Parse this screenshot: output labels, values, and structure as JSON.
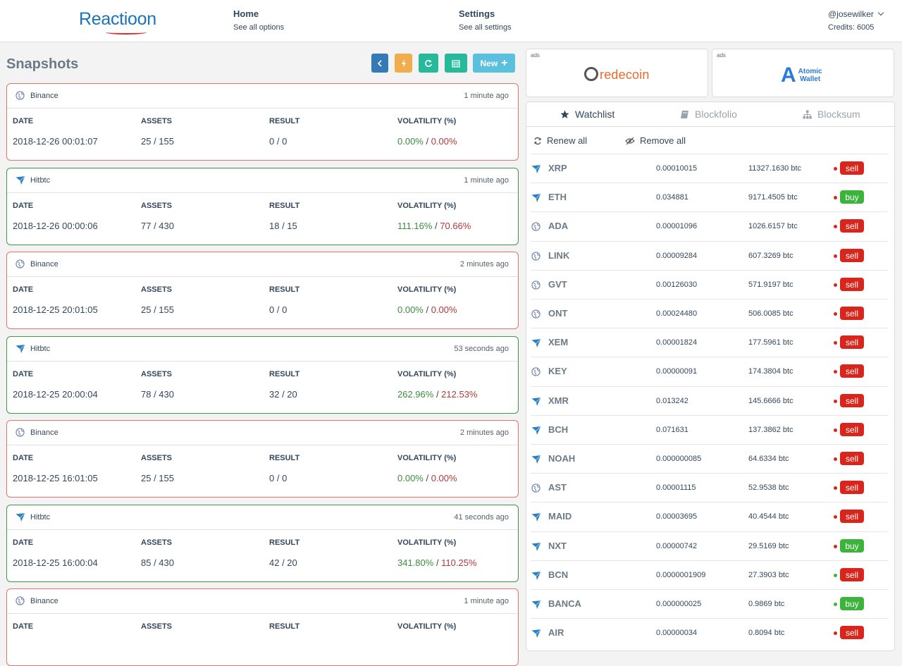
{
  "header": {
    "logo": "Reactioon",
    "nav": [
      {
        "title": "Home",
        "subtitle": "See all options"
      },
      {
        "title": "Settings",
        "subtitle": "See all settings"
      }
    ],
    "user": "@josewilker",
    "credits": "Credits: 6005"
  },
  "snapshots": {
    "title": "Snapshots",
    "new_label": "New",
    "columns": [
      "DATE",
      "ASSETS",
      "RESULT",
      "VOLATILITY (%)"
    ],
    "separator": " / ",
    "items": [
      {
        "exchange": "Binance",
        "ago": "1 minute ago",
        "date": "2018-12-26 00:01:07",
        "assets": "25 / 155",
        "result": "0 / 0",
        "vol_pos": "0.00%",
        "vol_neg": "0.00%",
        "status": "red"
      },
      {
        "exchange": "Hitbtc",
        "ago": "1 minute ago",
        "date": "2018-12-26 00:00:06",
        "assets": "77 / 430",
        "result": "18 / 15",
        "vol_pos": "111.16%",
        "vol_neg": "70.66%",
        "status": "green"
      },
      {
        "exchange": "Binance",
        "ago": "2 minutes ago",
        "date": "2018-12-25 20:01:05",
        "assets": "25 / 155",
        "result": "0 / 0",
        "vol_pos": "0.00%",
        "vol_neg": "0.00%",
        "status": "red"
      },
      {
        "exchange": "Hitbtc",
        "ago": "53 seconds ago",
        "date": "2018-12-25 20:00:04",
        "assets": "78 / 430",
        "result": "32 / 20",
        "vol_pos": "262.96%",
        "vol_neg": "212.53%",
        "status": "green"
      },
      {
        "exchange": "Binance",
        "ago": "2 minutes ago",
        "date": "2018-12-25 16:01:05",
        "assets": "25 / 155",
        "result": "0 / 0",
        "vol_pos": "0.00%",
        "vol_neg": "0.00%",
        "status": "red"
      },
      {
        "exchange": "Hitbtc",
        "ago": "41 seconds ago",
        "date": "2018-12-25 16:00:04",
        "assets": "85 / 430",
        "result": "42 / 20",
        "vol_pos": "341.80%",
        "vol_neg": "110.25%",
        "status": "green"
      },
      {
        "exchange": "Binance",
        "ago": "1 minute ago",
        "date": "",
        "assets": "",
        "result": "",
        "vol_pos": "",
        "vol_neg": "",
        "status": "red"
      }
    ]
  },
  "ads": [
    {
      "label": "ads",
      "brand": "redecoin"
    },
    {
      "label": "ads",
      "brand_line1": "Atomic",
      "brand_line2": "Wallet"
    }
  ],
  "watchlist": {
    "tabs": [
      "Watchlist",
      "Blockfolio",
      "Blocksum"
    ],
    "renew_label": "Renew all",
    "remove_label": "Remove all",
    "items": [
      {
        "exchange": "hitbtc",
        "symbol": "XRP",
        "price": "0.00010015",
        "volume": "11327.1630 btc",
        "dot": "red",
        "signal": "sell"
      },
      {
        "exchange": "hitbtc",
        "symbol": "ETH",
        "price": "0.034881",
        "volume": "9171.4505 btc",
        "dot": "red",
        "signal": "buy"
      },
      {
        "exchange": "binance",
        "symbol": "ADA",
        "price": "0.00001096",
        "volume": "1026.6157 btc",
        "dot": "red",
        "signal": "sell"
      },
      {
        "exchange": "binance",
        "symbol": "LINK",
        "price": "0.00009284",
        "volume": "607.3269 btc",
        "dot": "red",
        "signal": "sell"
      },
      {
        "exchange": "binance",
        "symbol": "GVT",
        "price": "0.00126030",
        "volume": "571.9197 btc",
        "dot": "red",
        "signal": "sell"
      },
      {
        "exchange": "binance",
        "symbol": "ONT",
        "price": "0.00024480",
        "volume": "506.0085 btc",
        "dot": "red",
        "signal": "sell"
      },
      {
        "exchange": "hitbtc",
        "symbol": "XEM",
        "price": "0.00001824",
        "volume": "177.5961 btc",
        "dot": "red",
        "signal": "sell"
      },
      {
        "exchange": "binance",
        "symbol": "KEY",
        "price": "0.00000091",
        "volume": "174.3804 btc",
        "dot": "red",
        "signal": "sell"
      },
      {
        "exchange": "hitbtc",
        "symbol": "XMR",
        "price": "0.013242",
        "volume": "145.6666 btc",
        "dot": "red",
        "signal": "sell"
      },
      {
        "exchange": "hitbtc",
        "symbol": "BCH",
        "price": "0.071631",
        "volume": "137.3862 btc",
        "dot": "red",
        "signal": "sell"
      },
      {
        "exchange": "hitbtc",
        "symbol": "NOAH",
        "price": "0.000000085",
        "volume": "64.6334 btc",
        "dot": "red",
        "signal": "sell"
      },
      {
        "exchange": "binance",
        "symbol": "AST",
        "price": "0.00001115",
        "volume": "52.9538 btc",
        "dot": "red",
        "signal": "sell"
      },
      {
        "exchange": "hitbtc",
        "symbol": "MAID",
        "price": "0.00003695",
        "volume": "40.4544 btc",
        "dot": "red",
        "signal": "sell"
      },
      {
        "exchange": "hitbtc",
        "symbol": "NXT",
        "price": "0.00000742",
        "volume": "29.5169 btc",
        "dot": "red",
        "signal": "buy"
      },
      {
        "exchange": "hitbtc",
        "symbol": "BCN",
        "price": "0.0000001909",
        "volume": "27.3903 btc",
        "dot": "green",
        "signal": "sell"
      },
      {
        "exchange": "hitbtc",
        "symbol": "BANCA",
        "price": "0.000000025",
        "volume": "0.9869 btc",
        "dot": "green",
        "signal": "buy"
      },
      {
        "exchange": "hitbtc",
        "symbol": "AIR",
        "price": "0.00000034",
        "volume": "0.8094 btc",
        "dot": "red",
        "signal": "sell"
      }
    ]
  },
  "colors": {
    "sell": "#d9261c",
    "buy": "#3cb43c",
    "brand": "#1a73b8",
    "positive": "#3c8d3c",
    "negative": "#b03a3a"
  }
}
